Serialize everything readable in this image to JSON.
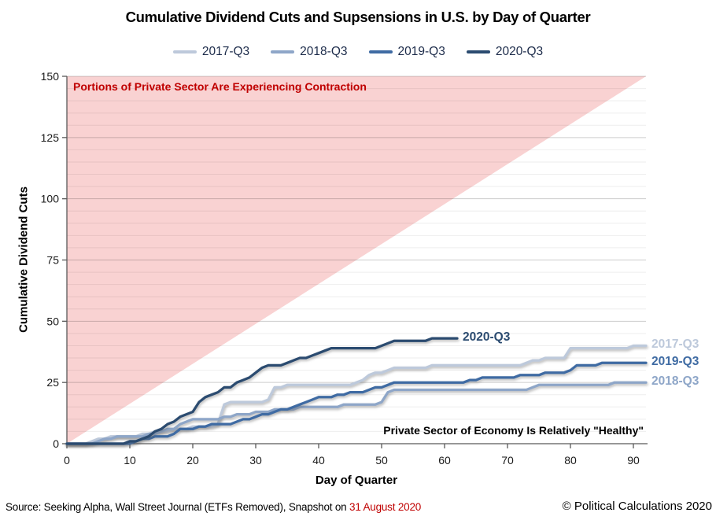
{
  "title": "Cumulative Dividend Cuts and Supsensions in U.S. by Day of Quarter",
  "footer": {
    "source_prefix": "Source: Seeking Alpha, Wall Street Journal (ETFs Removed), Snapshot on ",
    "snapshot_date": "31 August 2020",
    "snapshot_date_color": "#c00000",
    "copyright": "© Political Calculations 2020"
  },
  "chart_data": {
    "type": "line",
    "title": "Cumulative Dividend Cuts and Supsensions in U.S. by Day of Quarter",
    "xlabel": "Day of Quarter",
    "ylabel": "Cumulative Dividend Cuts",
    "xlim": [
      0,
      92
    ],
    "ylim": [
      0,
      150
    ],
    "xticks": [
      0,
      10,
      20,
      30,
      40,
      50,
      60,
      70,
      80,
      90
    ],
    "yticks": [
      0,
      25,
      50,
      75,
      100,
      125,
      150
    ],
    "grid": "horizontal only; minor every 5 (light), major every 25 (darker)",
    "legend_position": "top-center",
    "x_unit": "day of quarter (values_by_day index = day)",
    "contraction_region": {
      "shape": "triangle filling area above diagonal from (0,0) to (92,150)",
      "fill": "#f9d2d2"
    },
    "annotations": {
      "contraction": {
        "text": "Portions of Private Sector Are Experiencing Contraction",
        "color": "#c00000"
      },
      "healthy": {
        "text": "Private Sector of Economy Is Relatively \"Healthy\"",
        "color": "#000000"
      }
    },
    "series": [
      {
        "name": "2017-Q3",
        "color": "#bdc9db",
        "end_label": "2017-Q3",
        "values_by_day": [
          0,
          0,
          0,
          0,
          1,
          2,
          2,
          3,
          3,
          3,
          3,
          3,
          4,
          4,
          5,
          5,
          5,
          6,
          6,
          6,
          7,
          7,
          7,
          7,
          8,
          16,
          17,
          17,
          17,
          17,
          17,
          17,
          18,
          23,
          23,
          24,
          24,
          24,
          24,
          24,
          24,
          24,
          24,
          24,
          24,
          24,
          25,
          26,
          28,
          29,
          29,
          30,
          31,
          31,
          31,
          31,
          31,
          31,
          32,
          32,
          32,
          32,
          32,
          32,
          32,
          32,
          32,
          32,
          32,
          32,
          32,
          32,
          32,
          33,
          34,
          34,
          35,
          35,
          35,
          35,
          39,
          39,
          39,
          39,
          39,
          39,
          39,
          39,
          39,
          39,
          40,
          40,
          40
        ]
      },
      {
        "name": "2018-Q3",
        "color": "#8ea6c8",
        "end_label": "2018-Q3",
        "values_by_day": [
          0,
          0,
          0,
          0,
          0,
          1,
          2,
          2,
          3,
          3,
          3,
          3,
          3,
          4,
          4,
          5,
          6,
          6,
          8,
          9,
          10,
          10,
          10,
          10,
          10,
          11,
          11,
          12,
          12,
          12,
          13,
          13,
          13,
          14,
          14,
          14,
          14,
          15,
          15,
          15,
          15,
          15,
          15,
          15,
          16,
          16,
          16,
          16,
          16,
          16,
          17,
          21,
          22,
          22,
          22,
          22,
          22,
          22,
          22,
          22,
          22,
          22,
          22,
          22,
          22,
          22,
          22,
          22,
          22,
          22,
          22,
          22,
          22,
          22,
          23,
          24,
          24,
          24,
          24,
          24,
          24,
          24,
          24,
          24,
          24,
          24,
          24,
          25,
          25,
          25,
          25,
          25,
          25
        ]
      },
      {
        "name": "2019-Q3",
        "color": "#3f6ba3",
        "end_label": "2019-Q3",
        "values_by_day": [
          0,
          0,
          0,
          0,
          0,
          0,
          0,
          0,
          0,
          0,
          0,
          1,
          2,
          2,
          3,
          3,
          3,
          4,
          6,
          6,
          6,
          7,
          7,
          8,
          8,
          8,
          8,
          9,
          10,
          10,
          11,
          12,
          12,
          13,
          14,
          14,
          15,
          16,
          17,
          18,
          19,
          19,
          19,
          20,
          20,
          21,
          21,
          21,
          22,
          23,
          23,
          24,
          25,
          25,
          25,
          25,
          25,
          25,
          25,
          25,
          25,
          25,
          25,
          25,
          26,
          26,
          27,
          27,
          27,
          27,
          27,
          27,
          28,
          28,
          28,
          28,
          29,
          29,
          29,
          29,
          30,
          32,
          32,
          32,
          32,
          33,
          33,
          33,
          33,
          33,
          33,
          33,
          33
        ]
      },
      {
        "name": "2020-Q3",
        "color": "#2b4b70",
        "end_label": "2020-Q3",
        "values_by_day": [
          0,
          0,
          0,
          0,
          0,
          0,
          0,
          0,
          0,
          0,
          1,
          1,
          2,
          3,
          5,
          6,
          8,
          9,
          11,
          12,
          13,
          17,
          19,
          20,
          21,
          23,
          23,
          25,
          26,
          27,
          29,
          31,
          32,
          32,
          32,
          33,
          34,
          35,
          35,
          36,
          37,
          38,
          39,
          39,
          39,
          39,
          39,
          39,
          39,
          39,
          40,
          41,
          42,
          42,
          42,
          42,
          42,
          42,
          43,
          43,
          43,
          43,
          43
        ]
      }
    ]
  }
}
